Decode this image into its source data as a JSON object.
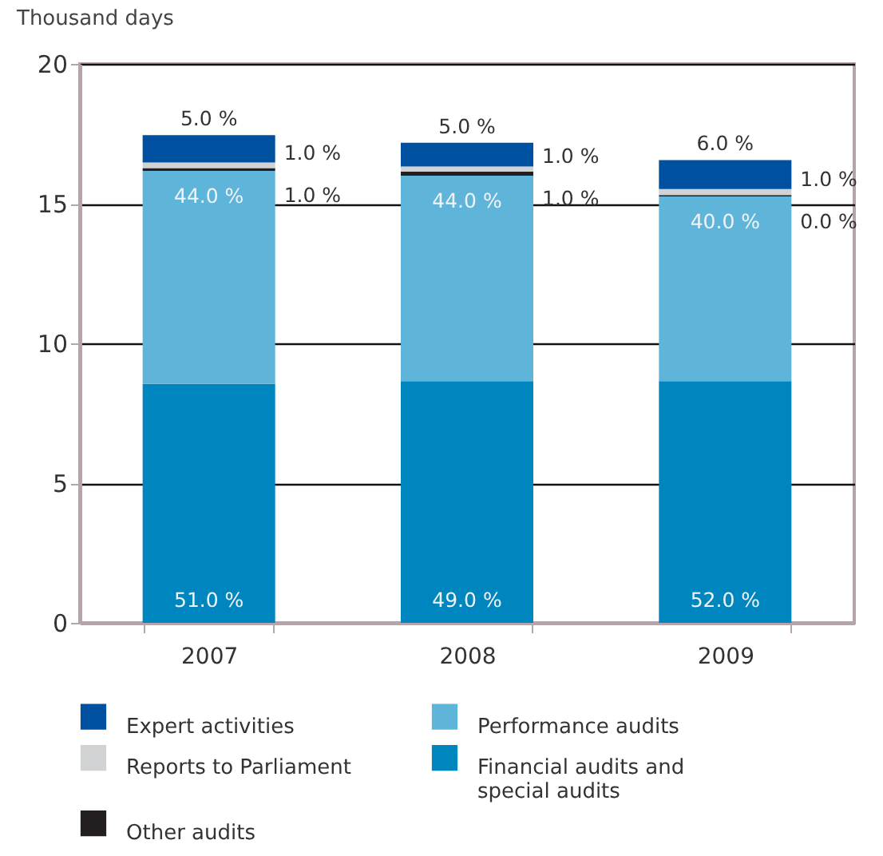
{
  "chart_data": {
    "type": "bar",
    "stacked": true,
    "ylabel": "Thousand days",
    "categories": [
      "2007",
      "2008",
      "2009"
    ],
    "series": [
      {
        "name": "Financial audits and special audits",
        "color": "#0086be",
        "values": [
          8.55,
          8.65,
          8.65
        ]
      },
      {
        "name": "Performance audits",
        "color": "#5fb4d9",
        "values": [
          7.62,
          7.35,
          6.61
        ]
      },
      {
        "name": "Other audits",
        "color": "#231f20",
        "values": [
          0.1,
          0.14,
          0.05
        ]
      },
      {
        "name": "Reports to Parliament",
        "color": "#d0d2d4",
        "values": [
          0.2,
          0.19,
          0.21
        ]
      },
      {
        "name": "Expert activities",
        "color": "#0050a0",
        "values": [
          0.98,
          0.85,
          1.04
        ]
      }
    ],
    "annotations": [
      "51.0 %",
      "49.0 %",
      "52.0 %",
      "44.0 %",
      "44.0 %",
      "40.0 %",
      "1.0 %",
      "1.0 %",
      "0.0 %",
      "1.0 %",
      "1.0 %",
      "1.0 %",
      "5.0 %",
      "5.0 %",
      "6.0 %"
    ],
    "ylim": [
      0,
      20
    ],
    "yticks": [
      0,
      5,
      10,
      15,
      20
    ],
    "grid": "y",
    "legend": "bottom"
  }
}
